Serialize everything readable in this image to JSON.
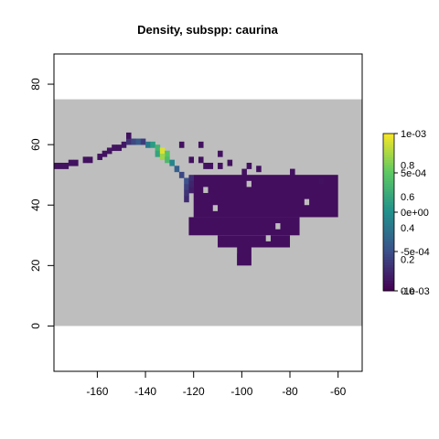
{
  "chart_data": {
    "type": "heatmap",
    "title": "Density, subspp: caurina",
    "xlabel": "",
    "ylabel": "",
    "xlim": [
      -178,
      -50
    ],
    "ylim": [
      -15,
      90
    ],
    "x_ticks": [
      -160,
      -140,
      -120,
      -100,
      -80,
      -60
    ],
    "y_ticks": [
      0,
      20,
      40,
      60,
      80
    ],
    "x_tick_labels": [
      "-160",
      "-140",
      "-120",
      "-100",
      "-80",
      "-60"
    ],
    "y_tick_labels": [
      "0",
      "20",
      "40",
      "60",
      "80"
    ],
    "background_band": {
      "lat_min": 0,
      "lat_max": 75,
      "color": "#bebebe"
    },
    "cell_size_deg": 2,
    "colorbar": {
      "colormap": "viridis",
      "range": [
        -0.001,
        0.001
      ],
      "tick_labels_outer": [
        "1e-03",
        "5e-04",
        "0e+00",
        "-5e-04",
        "-1e-03"
      ],
      "tick_labels_outer_values": [
        0.001,
        0.0005,
        0,
        -0.0005,
        -0.001
      ],
      "tick_labels_inner": [
        "0.8",
        "0.6",
        "0.4",
        "0.2",
        "0.0"
      ],
      "tick_labels_inner_values": [
        0.8,
        0.6,
        0.4,
        0.2,
        0.0
      ]
    },
    "cells": [
      {
        "lon": -178,
        "lat": 52,
        "v": 0.05
      },
      {
        "lon": -176,
        "lat": 52,
        "v": 0.05
      },
      {
        "lon": -174,
        "lat": 52,
        "v": 0.05
      },
      {
        "lon": -172,
        "lat": 53,
        "v": 0.05
      },
      {
        "lon": -170,
        "lat": 53,
        "v": 0.05
      },
      {
        "lon": -166,
        "lat": 54,
        "v": 0.05
      },
      {
        "lon": -164,
        "lat": 54,
        "v": 0.05
      },
      {
        "lon": -160,
        "lat": 55,
        "v": 0.05
      },
      {
        "lon": -158,
        "lat": 56,
        "v": 0.05
      },
      {
        "lon": -156,
        "lat": 57,
        "v": 0.06
      },
      {
        "lon": -154,
        "lat": 58,
        "v": 0.06
      },
      {
        "lon": -152,
        "lat": 58,
        "v": 0.06
      },
      {
        "lon": -150,
        "lat": 59,
        "v": 0.07
      },
      {
        "lon": -148,
        "lat": 60,
        "v": 0.15
      },
      {
        "lon": -146,
        "lat": 60,
        "v": 0.22
      },
      {
        "lon": -144,
        "lat": 60,
        "v": 0.28
      },
      {
        "lon": -142,
        "lat": 60,
        "v": 0.18
      },
      {
        "lon": -148,
        "lat": 62,
        "v": 0.05
      },
      {
        "lon": -140,
        "lat": 59,
        "v": 0.4
      },
      {
        "lon": -138,
        "lat": 59,
        "v": 0.55
      },
      {
        "lon": -136,
        "lat": 58,
        "v": 0.65
      },
      {
        "lon": -136,
        "lat": 56,
        "v": 0.58
      },
      {
        "lon": -134,
        "lat": 57,
        "v": 0.95
      },
      {
        "lon": -132,
        "lat": 56,
        "v": 0.72
      },
      {
        "lon": -134,
        "lat": 55,
        "v": 0.85
      },
      {
        "lon": -132,
        "lat": 54,
        "v": 0.68
      },
      {
        "lon": -130,
        "lat": 53,
        "v": 0.45
      },
      {
        "lon": -128,
        "lat": 51,
        "v": 0.3
      },
      {
        "lon": -126,
        "lat": 49,
        "v": 0.22
      },
      {
        "lon": -124,
        "lat": 47,
        "v": 0.25
      },
      {
        "lon": -124,
        "lat": 45,
        "v": 0.2
      },
      {
        "lon": -124,
        "lat": 43,
        "v": 0.16
      },
      {
        "lon": -124,
        "lat": 41,
        "v": 0.13
      },
      {
        "lon": -122,
        "lat": 48,
        "v": 0.14
      },
      {
        "lon": -122,
        "lat": 46,
        "v": 0.11
      },
      {
        "lon": -122,
        "lat": 44,
        "v": 0.09
      },
      {
        "lon": -126,
        "lat": 59,
        "v": 0.05
      },
      {
        "lon": -122,
        "lat": 54,
        "v": 0.05
      },
      {
        "lon": -118,
        "lat": 54,
        "v": 0.05
      },
      {
        "lon": -114,
        "lat": 52,
        "v": 0.05
      },
      {
        "lon": -116,
        "lat": 52,
        "v": 0.05
      },
      {
        "lon": -110,
        "lat": 52,
        "v": 0.05
      },
      {
        "lon": -106,
        "lat": 53,
        "v": 0.05
      },
      {
        "lon": -98,
        "lat": 52,
        "v": 0.05
      },
      {
        "lon": -94,
        "lat": 51,
        "v": 0.05
      },
      {
        "lon": -118,
        "lat": 59,
        "v": 0.05
      },
      {
        "lon": -110,
        "lat": 56,
        "v": 0.05
      },
      {
        "lon": -100,
        "lat": 50,
        "v": 0.05
      },
      {
        "lon": -80,
        "lat": 50,
        "v": 0.05
      },
      {
        "lon": -68,
        "lat": 47,
        "v": 0.05
      }
    ],
    "regions": [
      {
        "lon_min": -120,
        "lon_max": -60,
        "lat_min": 36,
        "lat_max": 50,
        "v": 0.04
      },
      {
        "lon_min": -122,
        "lon_max": -76,
        "lat_min": 30,
        "lat_max": 36,
        "v": 0.04
      },
      {
        "lon_min": -110,
        "lon_max": -80,
        "lat_min": 26,
        "lat_max": 30,
        "v": 0.04
      },
      {
        "lon_min": -102,
        "lon_max": -96,
        "lat_min": 20,
        "lat_max": 26,
        "v": 0.04
      }
    ]
  }
}
